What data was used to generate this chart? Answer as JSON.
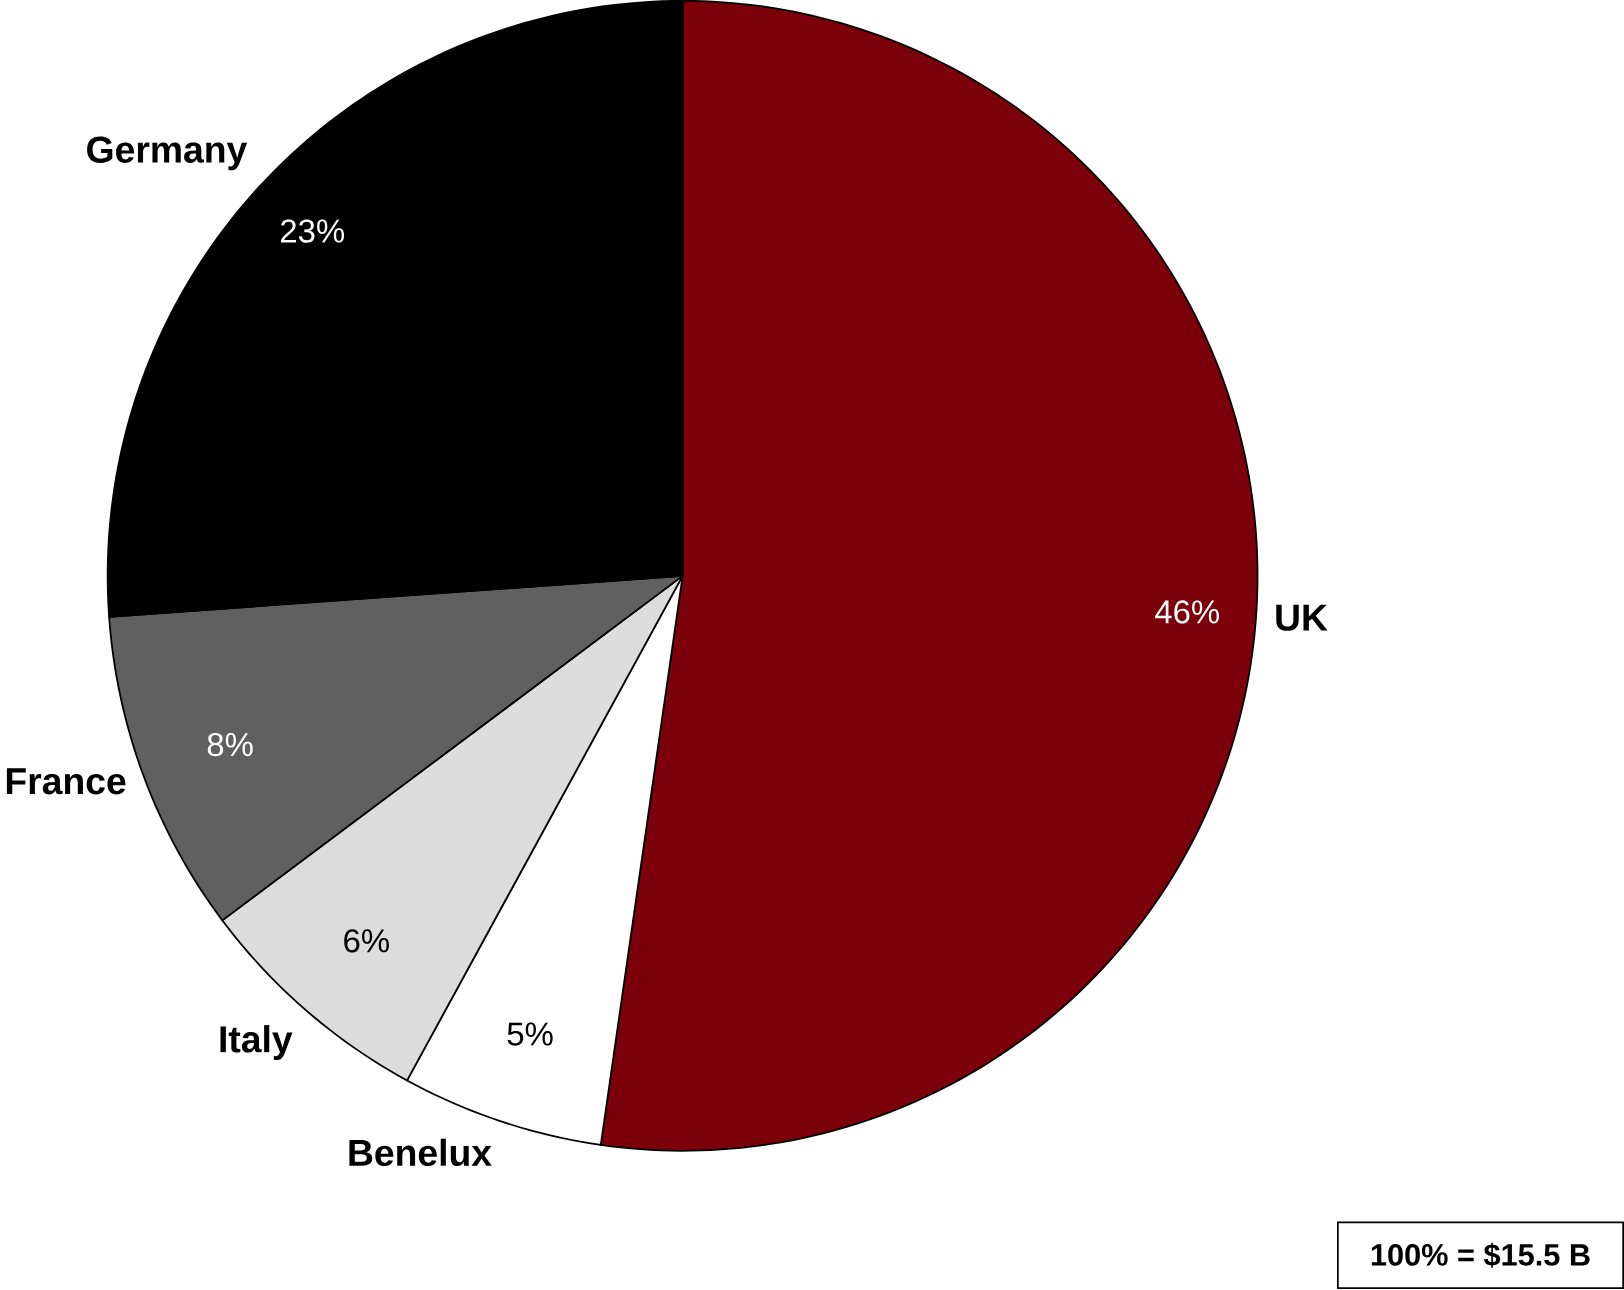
{
  "chart_data": {
    "type": "pie",
    "categories": [
      "UK",
      "Benelux",
      "Italy",
      "France",
      "Germany"
    ],
    "values": [
      46,
      5,
      6,
      8,
      23
    ],
    "colors": [
      "#7b0009",
      "#ffffff",
      "#dcdcdc",
      "#606060",
      "#000000"
    ],
    "value_labels": [
      "46%",
      "5%",
      "6%",
      "8%",
      "23%"
    ],
    "annotations": [
      "100% = $15.5 B"
    ]
  }
}
